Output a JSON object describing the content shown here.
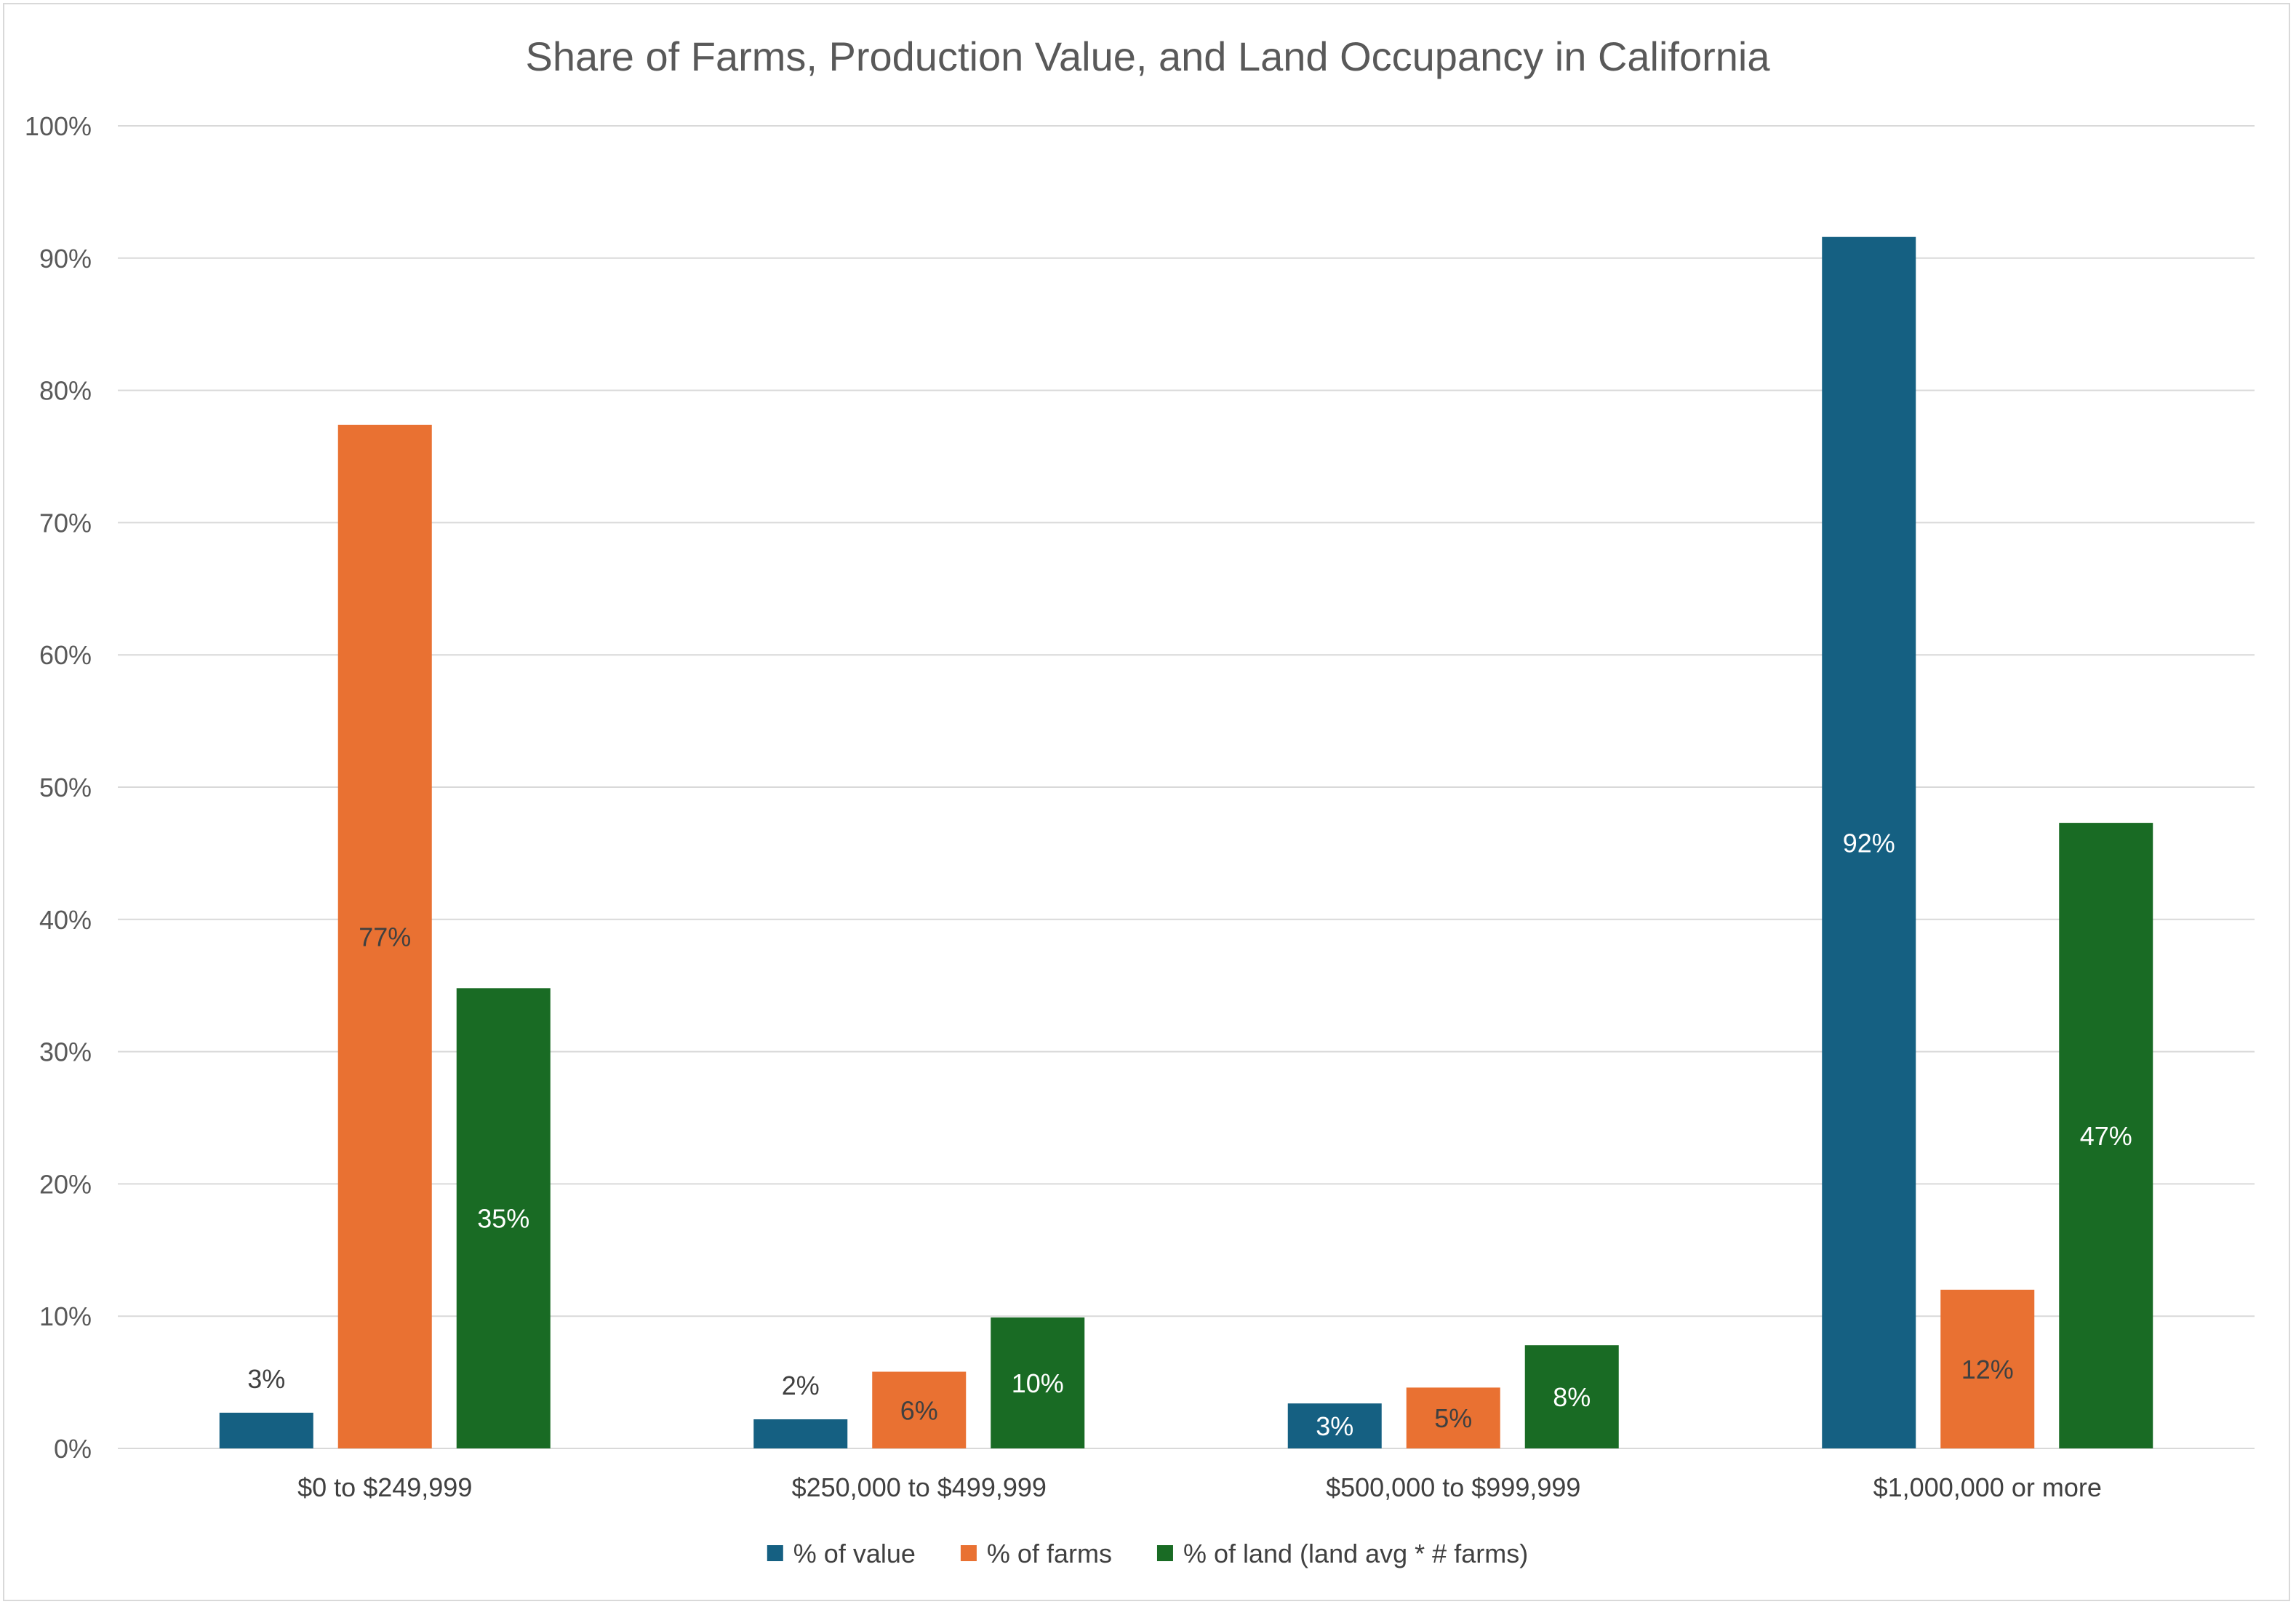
{
  "chart_data": {
    "type": "bar",
    "title": "Share of Farms, Production Value, and Land Occupancy in California",
    "xlabel": "",
    "ylabel": "",
    "ylim": [
      0,
      100
    ],
    "yticks": [
      0,
      10,
      20,
      30,
      40,
      50,
      60,
      70,
      80,
      90,
      100
    ],
    "ytick_labels": [
      "0%",
      "10%",
      "20%",
      "30%",
      "40%",
      "50%",
      "60%",
      "70%",
      "80%",
      "90%",
      "100%"
    ],
    "grid": true,
    "legend_position": "bottom",
    "categories": [
      "$0 to $249,999",
      "$250,000 to $499,999",
      "$500,000 to $999,999",
      "$1,000,000 or more"
    ],
    "series": [
      {
        "name": "% of value",
        "color": "#156082",
        "values": [
          2.7,
          2.2,
          3.4,
          91.6
        ],
        "labels": [
          "3%",
          "2%",
          "3%",
          "92%"
        ],
        "label_color": "#404040",
        "inside_label_color": "#ffffff"
      },
      {
        "name": "% of farms",
        "color": "#E97132",
        "values": [
          77.4,
          5.8,
          4.6,
          12.0
        ],
        "labels": [
          "77%",
          "6%",
          "5%",
          "12%"
        ],
        "label_color": "#404040",
        "inside_label_color": "#404040"
      },
      {
        "name": "% of land (land avg * # farms)",
        "color": "#196B24",
        "values": [
          34.8,
          9.9,
          7.8,
          47.3
        ],
        "labels": [
          "35%",
          "10%",
          "8%",
          "47%"
        ],
        "label_color": "#404040",
        "inside_label_color": "#ffffff"
      }
    ],
    "colors": {
      "gridline": "#d9d9d9",
      "axis": "#d9d9d9"
    }
  }
}
